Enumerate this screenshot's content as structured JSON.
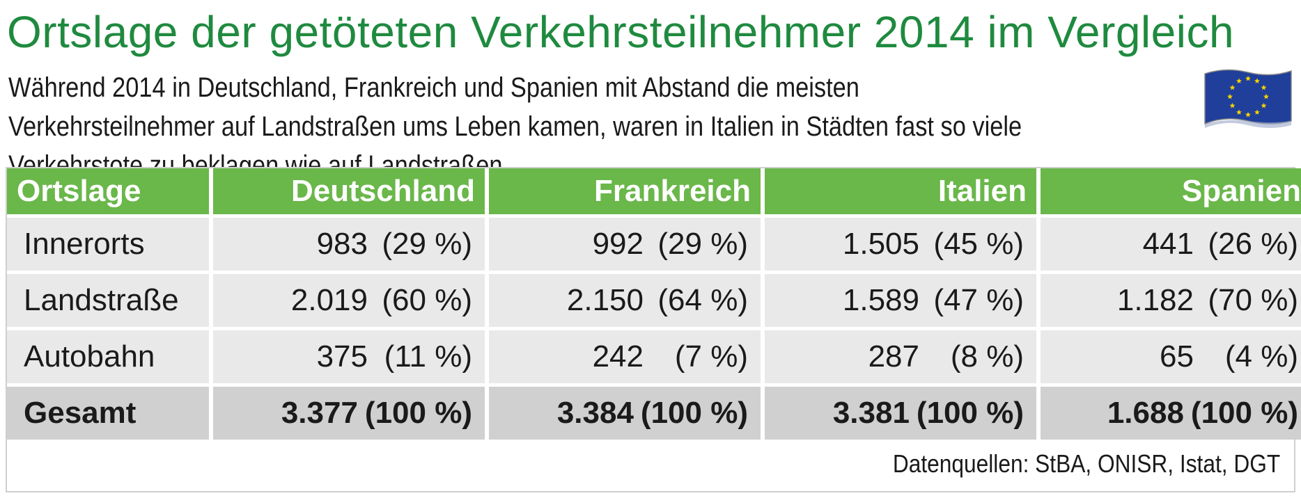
{
  "title": "Ortslage der getöteten Verkehrsteilnehmer 2014 im Vergleich",
  "subtitle": "Während 2014 in Deutschland, Frankreich und Spanien mit Abstand die meisten Verkehrsteilnehmer auf Landstraßen ums Leben kamen, waren in Italien in Städten fast so viele Verkehrstote zu beklagen wie auf Landstraßen.",
  "flag_icon": "eu-flag-icon",
  "source": "Datenquellen: StBA, ONISR, Istat, DGT",
  "colors": {
    "title": "#1f8a3f",
    "header": "#6ab74a",
    "row": "#e9e9e9",
    "total_row": "#d0d0d0"
  },
  "chart_data": {
    "type": "table",
    "columns": [
      "Ortslage",
      "Deutschland",
      "Frankreich",
      "Italien",
      "Spanien"
    ],
    "rows": [
      {
        "label": "Innerorts",
        "cells": [
          {
            "value": "983",
            "pct": "(29 %)"
          },
          {
            "value": "992",
            "pct": "(29 %)"
          },
          {
            "value": "1.505",
            "pct": "(45 %)"
          },
          {
            "value": "441",
            "pct": "(26 %)"
          }
        ]
      },
      {
        "label": "Landstraße",
        "cells": [
          {
            "value": "2.019",
            "pct": "(60 %)"
          },
          {
            "value": "2.150",
            "pct": "(64 %)"
          },
          {
            "value": "1.589",
            "pct": "(47 %)"
          },
          {
            "value": "1.182",
            "pct": "(70 %)"
          }
        ]
      },
      {
        "label": "Autobahn",
        "cells": [
          {
            "value": "375",
            "pct": "(11 %)"
          },
          {
            "value": "242",
            "pct": "(7 %)"
          },
          {
            "value": "287",
            "pct": "(8 %)"
          },
          {
            "value": "65",
            "pct": "(4 %)"
          }
        ]
      },
      {
        "label": "Gesamt",
        "total": true,
        "cells": [
          {
            "value": "3.377",
            "pct": "(100 %)"
          },
          {
            "value": "3.384",
            "pct": "(100 %)"
          },
          {
            "value": "3.381",
            "pct": "(100 %)"
          },
          {
            "value": "1.688",
            "pct": "(100 %)"
          }
        ]
      }
    ]
  }
}
